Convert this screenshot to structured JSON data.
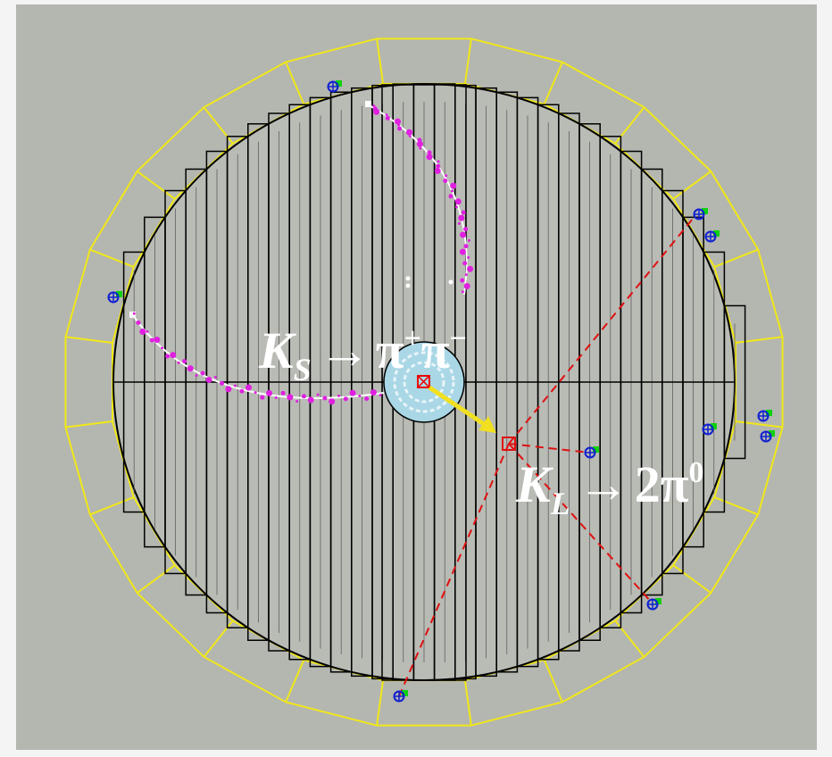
{
  "labels": [
    {
      "base": "K",
      "sub": "S",
      "arrow": "→",
      "p1": "π",
      "p1_sup": "+",
      "p2": "π",
      "p2_sup": "−"
    },
    {
      "base": "K",
      "sub": "L",
      "arrow": "→",
      "p1": "2π",
      "p1_sup": "0"
    }
  ]
}
